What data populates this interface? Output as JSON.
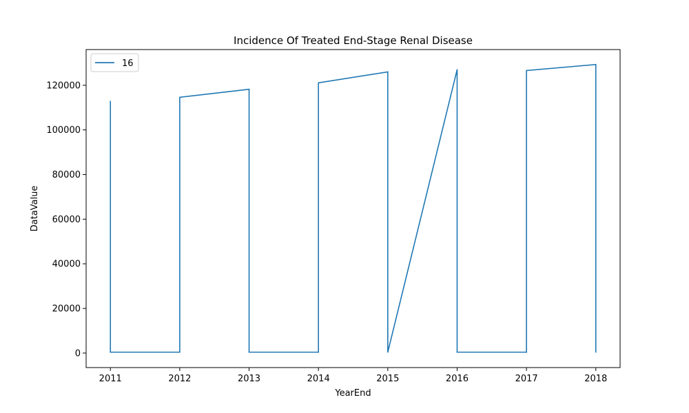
{
  "chart_data": {
    "type": "line",
    "title": "Incidence Of Treated End-Stage Renal Disease",
    "xlabel": "YearEnd",
    "ylabel": "DataValue",
    "x_ticks": [
      "2011",
      "2012",
      "2013",
      "2014",
      "2015",
      "2016",
      "2017",
      "2018"
    ],
    "y_ticks": [
      "0",
      "20000",
      "40000",
      "60000",
      "80000",
      "100000",
      "120000"
    ],
    "xlim": [
      2010.65,
      2018.35
    ],
    "ylim": [
      -6500,
      136000
    ],
    "grid": false,
    "legend": {
      "placement": "top-left",
      "entries": [
        "16"
      ]
    },
    "series": [
      {
        "name": "16",
        "color": "#1f77b4",
        "points": [
          [
            2011,
            112800
          ],
          [
            2011,
            400
          ],
          [
            2012,
            400
          ],
          [
            2012,
            114600
          ],
          [
            2013,
            118200
          ],
          [
            2013,
            400
          ],
          [
            2014,
            400
          ],
          [
            2014,
            121100
          ],
          [
            2015,
            126000
          ],
          [
            2015,
            400
          ],
          [
            2016,
            127000
          ],
          [
            2016,
            400
          ],
          [
            2017,
            400
          ],
          [
            2017,
            126600
          ],
          [
            2018,
            129300
          ],
          [
            2018,
            400
          ]
        ]
      }
    ]
  }
}
